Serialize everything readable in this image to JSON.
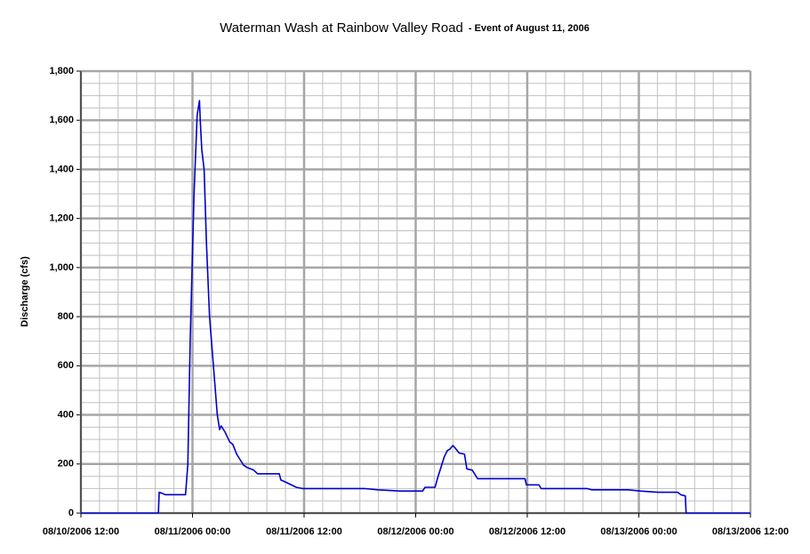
{
  "chart_data": {
    "type": "line",
    "title": "Waterman Wash at Rainbow Valley Road",
    "subtitle": "- Event of August 11, 2006",
    "y_label": "Discharge (cfs)",
    "color": "#0000cc",
    "grid": true,
    "xlim": [
      "08/10/2006 12:00",
      "08/13/2006 12:00"
    ],
    "xticks": [
      "08/10/2006 12:00",
      "08/11/2006 00:00",
      "08/11/2006 12:00",
      "08/12/2006 00:00",
      "08/12/2006 12:00",
      "08/13/2006 00:00",
      "08/13/2006 12:00"
    ],
    "ylim": [
      0,
      1800
    ],
    "yticks": [
      0,
      200,
      400,
      600,
      800,
      {
        "value": 1000,
        "label": "1,000"
      },
      {
        "value": 1200,
        "label": "1,200"
      },
      {
        "value": 1400,
        "label": "1,400"
      },
      {
        "value": 1600,
        "label": "1,600"
      },
      {
        "value": 1800,
        "label": "1,800"
      }
    ],
    "x": [
      "08/10/2006 12:00",
      "08/10/2006 20:20",
      "08/10/2006 20:25",
      "08/10/2006 21:05",
      "08/10/2006 23:15",
      "08/10/2006 23:30",
      "08/10/2006 23:45",
      "08/11/2006 00:10",
      "08/11/2006 00:30",
      "08/11/2006 00:45",
      "08/11/2006 00:50",
      "08/11/2006 01:00",
      "08/11/2006 01:15",
      "08/11/2006 01:30",
      "08/11/2006 01:50",
      "08/11/2006 02:15",
      "08/11/2006 02:40",
      "08/11/2006 02:55",
      "08/11/2006 03:05",
      "08/11/2006 03:30",
      "08/11/2006 04:00",
      "08/11/2006 04:20",
      "08/11/2006 04:45",
      "08/11/2006 05:05",
      "08/11/2006 05:30",
      "08/11/2006 05:55",
      "08/11/2006 06:35",
      "08/11/2006 07:00",
      "08/11/2006 09:20",
      "08/11/2006 09:30",
      "08/11/2006 10:05",
      "08/11/2006 11:10",
      "08/11/2006 11:50",
      "08/11/2006 18:30",
      "08/11/2006 19:55",
      "08/11/2006 22:20",
      "08/12/2006 00:45",
      "08/12/2006 01:00",
      "08/12/2006 02:05",
      "08/12/2006 02:25",
      "08/12/2006 03:05",
      "08/12/2006 03:25",
      "08/12/2006 03:40",
      "08/12/2006 04:00",
      "08/12/2006 04:15",
      "08/12/2006 04:40",
      "08/12/2006 05:15",
      "08/12/2006 05:30",
      "08/12/2006 06:05",
      "08/12/2006 06:40",
      "08/12/2006 11:45",
      "08/12/2006 11:55",
      "08/12/2006 13:15",
      "08/12/2006 13:30",
      "08/12/2006 18:25",
      "08/12/2006 18:55",
      "08/12/2006 22:50",
      "08/13/2006 00:10",
      "08/13/2006 02:05",
      "08/13/2006 04:10",
      "08/13/2006 04:30",
      "08/13/2006 05:00",
      "08/13/2006 05:05",
      "08/13/2006 12:00"
    ],
    "values": [
      0,
      0,
      85,
      75,
      75,
      200,
      700,
      1300,
      1620,
      1680,
      1600,
      1480,
      1400,
      1100,
      800,
      600,
      400,
      340,
      355,
      330,
      290,
      280,
      240,
      220,
      195,
      185,
      175,
      160,
      160,
      135,
      125,
      105,
      100,
      100,
      95,
      90,
      90,
      105,
      105,
      150,
      230,
      255,
      260,
      275,
      265,
      245,
      240,
      180,
      175,
      140,
      140,
      115,
      115,
      100,
      100,
      95,
      95,
      90,
      85,
      85,
      75,
      70,
      0,
      0
    ]
  }
}
